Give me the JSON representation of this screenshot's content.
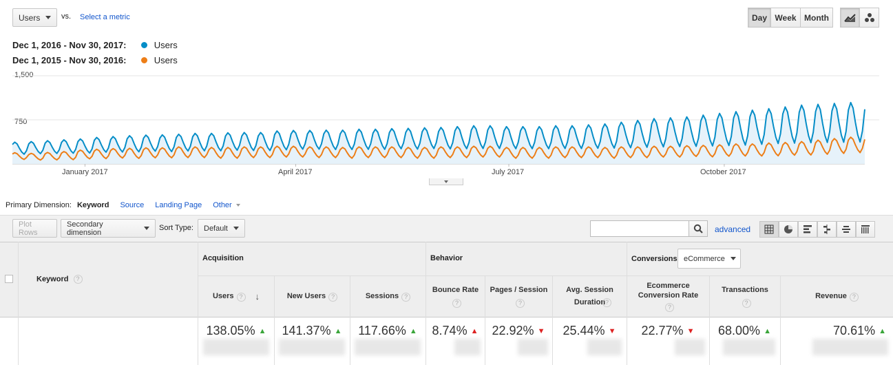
{
  "header": {
    "metric_label": "Users",
    "vs_label": "vs.",
    "select_metric": "Select a metric",
    "granularity": [
      "Day",
      "Week",
      "Month"
    ],
    "granularity_selected": "Day",
    "line_chart_icon": "line-chart-icon",
    "motion_chart_icon": "motion-chart-icon"
  },
  "legend": [
    {
      "range": "Dec 1, 2016 - Nov 30, 2017:",
      "metric": "Users",
      "color": "#058dc7"
    },
    {
      "range": "Dec 1, 2015 - Nov 30, 2016:",
      "metric": "Users",
      "color": "#ed7e17"
    }
  ],
  "chart_data": {
    "type": "line",
    "y_ticks": [
      "1,500",
      "750"
    ],
    "ylim": [
      0,
      1500
    ],
    "x_tick_labels": [
      "January 2017",
      "April 2017",
      "July 2017",
      "October 2017"
    ],
    "x_tick_index": [
      31,
      121,
      212,
      304
    ],
    "days": 365,
    "grid": true,
    "series": [
      {
        "color": "#058dc7",
        "fill": "#e6f2fa",
        "weekly_avg": [
          280,
          290,
          300,
          310,
          320,
          340,
          350,
          360,
          370,
          370,
          380,
          390,
          390,
          400,
          400,
          400,
          420,
          430,
          430,
          430,
          430,
          440,
          440,
          450,
          450,
          460,
          460,
          470,
          480,
          480,
          470,
          470,
          470,
          480,
          480,
          490,
          500,
          520,
          540,
          560,
          570,
          580,
          600,
          620,
          640,
          660,
          680,
          700,
          720,
          730,
          740,
          750,
          760,
          780,
          820,
          860,
          940,
          960,
          1000,
          1040,
          1060,
          1070,
          1080
        ],
        "weekly_amp": [
          90,
          90,
          95,
          100,
          105,
          110,
          115,
          120,
          120,
          125,
          125,
          130,
          130,
          130,
          135,
          135,
          140,
          140,
          140,
          145,
          145,
          150,
          150,
          150,
          155,
          155,
          160,
          165,
          170,
          170,
          165,
          165,
          165,
          170,
          170,
          175,
          180,
          190,
          200,
          210,
          215,
          220,
          230,
          240,
          250,
          255,
          260,
          270,
          280,
          285,
          290,
          295,
          300,
          310,
          320,
          330,
          340,
          345,
          350,
          360,
          365,
          370,
          375
        ]
      },
      {
        "color": "#ed7e17",
        "fill": "none",
        "weekly_avg": [
          140,
          130,
          140,
          150,
          170,
          180,
          190,
          190,
          200,
          200,
          210,
          210,
          200,
          200,
          210,
          210,
          220,
          220,
          210,
          210,
          200,
          210,
          210,
          210,
          200,
          200,
          210,
          210,
          220,
          220,
          200,
          200,
          200,
          210,
          210,
          210,
          200,
          210,
          210,
          220,
          220,
          230,
          230,
          240,
          250,
          250,
          260,
          270,
          280,
          300,
          320,
          340,
          350,
          360,
          370,
          380,
          390,
          400,
          420,
          400,
          390,
          380,
          370
        ],
        "weekly_amp": [
          50,
          50,
          55,
          60,
          65,
          70,
          70,
          75,
          75,
          75,
          80,
          80,
          80,
          80,
          80,
          80,
          80,
          80,
          80,
          80,
          80,
          80,
          80,
          80,
          80,
          80,
          80,
          80,
          80,
          80,
          80,
          80,
          80,
          80,
          80,
          80,
          80,
          80,
          80,
          80,
          80,
          80,
          85,
          85,
          90,
          90,
          95,
          95,
          100,
          105,
          110,
          115,
          120,
          125,
          130,
          130,
          130,
          130,
          135,
          130,
          130,
          125,
          120
        ]
      }
    ]
  },
  "dimension_bar": {
    "label": "Primary Dimension:",
    "active": "Keyword",
    "options": [
      "Source",
      "Landing Page",
      "Other"
    ]
  },
  "toolbar": {
    "plot_rows": "Plot Rows",
    "secondary_dimension": "Secondary dimension",
    "sort_type_label": "Sort Type:",
    "sort_type_value": "Default",
    "search_value": "",
    "advanced": "advanced"
  },
  "table": {
    "keyword_header": "Keyword",
    "groups": {
      "acquisition": "Acquisition",
      "behavior": "Behavior",
      "conversions": "Conversions",
      "conversions_select": "eCommerce"
    },
    "columns": [
      {
        "label": "Users",
        "value": "138.05%",
        "trend": "up"
      },
      {
        "label": "New Users",
        "value": "141.37%",
        "trend": "up"
      },
      {
        "label": "Sessions",
        "value": "117.66%",
        "trend": "up"
      },
      {
        "label": "Bounce Rate",
        "value": "8.74%",
        "trend": "up-bad"
      },
      {
        "label": "Pages / Session",
        "value": "22.92%",
        "trend": "down"
      },
      {
        "label": "Avg. Session Duration",
        "value": "25.44%",
        "trend": "down"
      },
      {
        "label": "Ecommerce Conversion Rate",
        "value": "22.77%",
        "trend": "down"
      },
      {
        "label": "Transactions",
        "value": "68.00%",
        "trend": "up"
      },
      {
        "label": "Revenue",
        "value": "70.61%",
        "trend": "up"
      }
    ]
  }
}
